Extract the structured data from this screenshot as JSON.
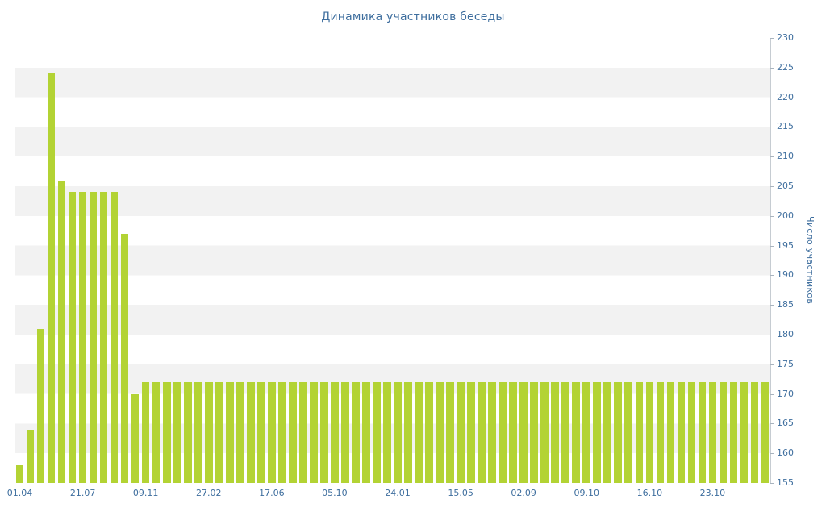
{
  "chart_data": {
    "type": "bar",
    "title": "Динамика участников беседы",
    "xlabel": "",
    "ylabel": "Число участников",
    "y_min": 155,
    "y_max": 230,
    "y_step": 5,
    "grid": "alternating-horizontal-bands",
    "legend": "none",
    "y_tick_labels": [
      "155",
      "160",
      "165",
      "170",
      "175",
      "180",
      "185",
      "190",
      "195",
      "200",
      "205",
      "210",
      "215",
      "220",
      "225",
      "230"
    ],
    "x_tick_labels": [
      "01.04",
      "21.07",
      "09.11",
      "27.02",
      "17.06",
      "05.10",
      "24.01",
      "15.05",
      "02.09",
      "09.10",
      "16.10",
      "23.10"
    ],
    "x_tick_bar_indices": [
      0,
      6,
      12,
      18,
      24,
      30,
      36,
      42,
      48,
      54,
      60,
      66
    ],
    "values": [
      158,
      164,
      181,
      224,
      206,
      204,
      204,
      204,
      204,
      204,
      197,
      170,
      172,
      172,
      172,
      172,
      172,
      172,
      172,
      172,
      172,
      172,
      172,
      172,
      172,
      172,
      172,
      172,
      172,
      172,
      172,
      172,
      172,
      172,
      172,
      172,
      172,
      172,
      172,
      172,
      172,
      172,
      172,
      172,
      172,
      172,
      172,
      172,
      172,
      172,
      172,
      172,
      172,
      172,
      172,
      172,
      172,
      172,
      172,
      172,
      172,
      172,
      172,
      172,
      172,
      172,
      172,
      172,
      172,
      172,
      172,
      172
    ],
    "colors": {
      "bar": "#b3d334",
      "title_text": "#3e6e9e",
      "axis_text": "#3e6e9e",
      "band": "#f2f2f2",
      "axis_line": "#c6ccd2",
      "tick_mark": "#a9b4bf",
      "background": "#ffffff"
    }
  }
}
